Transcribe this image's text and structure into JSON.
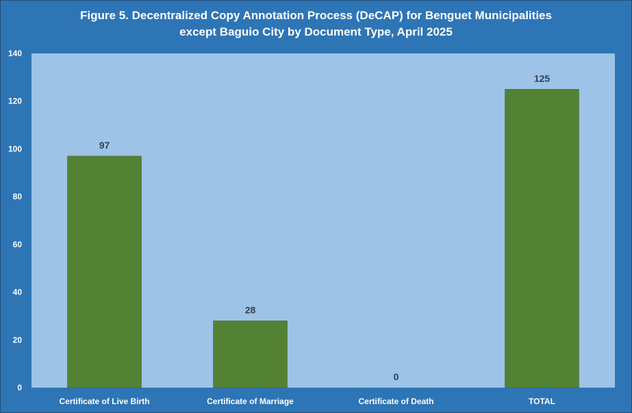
{
  "title_line1": "Figure 5. Decentralized Copy Annotation Process (DeCAP) for Benguet Municipalities",
  "title_line2": "except Baguio City by Document Type, April 2025",
  "colors": {
    "background": "#2e75b6",
    "plot_area": "#9dc3e6",
    "bar": "#548235",
    "axis_text": "#ffffff",
    "data_label": "#333f50"
  },
  "chart_data": {
    "type": "bar",
    "title": "Figure 5. Decentralized Copy Annotation Process (DeCAP) for Benguet Municipalities except Baguio City by Document Type, April 2025",
    "xlabel": "",
    "ylabel": "",
    "categories": [
      "Certificate of Live Birth",
      "Certificate of Marriage",
      "Certificate of Death",
      "TOTAL"
    ],
    "values": [
      97,
      28,
      0,
      125
    ],
    "data_labels": [
      "97",
      "28",
      "0",
      "125"
    ],
    "ylim": [
      0,
      140
    ],
    "yticks": [
      0,
      20,
      40,
      60,
      80,
      100,
      120,
      140
    ],
    "ytick_labels": [
      "0",
      "20",
      "40",
      "60",
      "80",
      "100",
      "120",
      "140"
    ],
    "grid": false,
    "legend": "none"
  }
}
